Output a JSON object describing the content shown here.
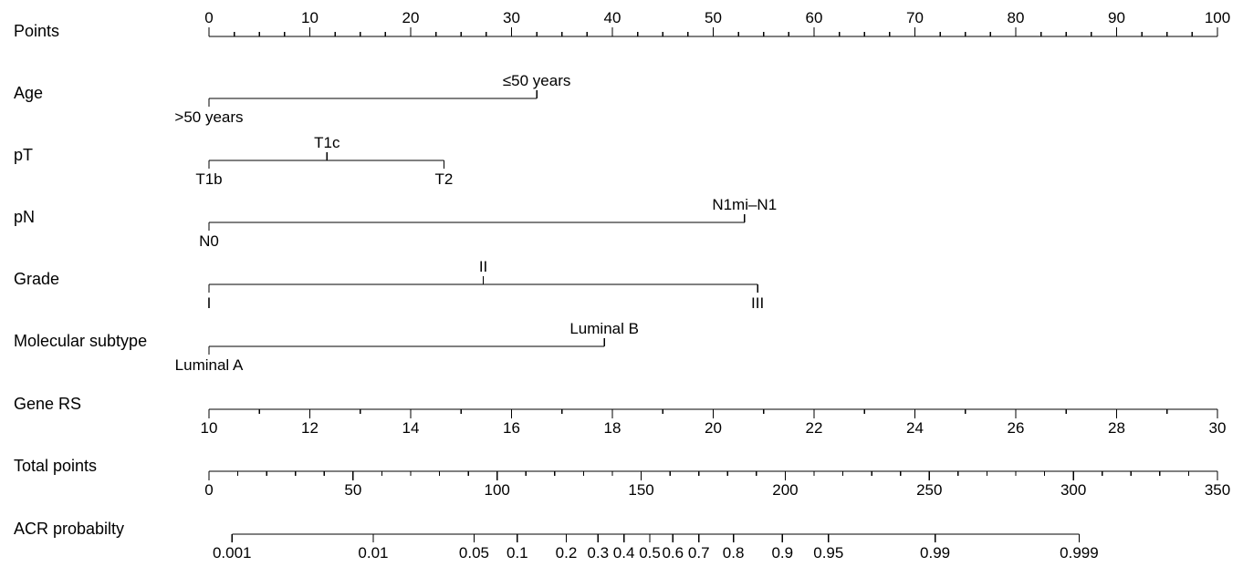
{
  "chart_data": {
    "type": "nomogram",
    "points_scale": {
      "label": "Points",
      "min": 0,
      "max": 100,
      "major_ticks": [
        0,
        10,
        20,
        30,
        40,
        50,
        60,
        70,
        80,
        90,
        100
      ],
      "tick_labels": [
        "0",
        "10",
        "20",
        "30",
        "40",
        "50",
        "60",
        "70",
        "80",
        "90",
        "100"
      ],
      "minor_step": 2.5
    },
    "predictors": [
      {
        "label": "Age",
        "levels": [
          {
            "label": ">50 years",
            "points": 0,
            "side": "below"
          },
          {
            "label": "≤50 years",
            "points": 32.5,
            "side": "above"
          }
        ]
      },
      {
        "label": "pT",
        "levels": [
          {
            "label": "T1b",
            "points": 0,
            "side": "below"
          },
          {
            "label": "T1c",
            "points": 11.7,
            "side": "above"
          },
          {
            "label": "T2",
            "points": 23.3,
            "side": "below"
          }
        ]
      },
      {
        "label": "pN",
        "levels": [
          {
            "label": "N0",
            "points": 0,
            "side": "below"
          },
          {
            "label": "N1mi–N1",
            "points": 53.1,
            "side": "above"
          }
        ]
      },
      {
        "label": "Grade",
        "levels": [
          {
            "label": "I",
            "points": 0,
            "side": "below"
          },
          {
            "label": "II",
            "points": 27.2,
            "side": "above"
          },
          {
            "label": "III",
            "points": 54.4,
            "side": "below"
          }
        ]
      },
      {
        "label": "Molecular subtype",
        "levels": [
          {
            "label": "Luminal A",
            "points": 0,
            "side": "below"
          },
          {
            "label": "Luminal B",
            "points": 39.2,
            "side": "above"
          }
        ]
      },
      {
        "label": "Gene RS",
        "continuous": true,
        "min": 10,
        "max": 30,
        "points_at_min": 0,
        "points_at_max": 100,
        "major_ticks": [
          10,
          12,
          14,
          16,
          18,
          20,
          22,
          24,
          26,
          28,
          30
        ],
        "tick_labels": [
          "10",
          "12",
          "14",
          "16",
          "18",
          "20",
          "22",
          "24",
          "26",
          "28",
          "30"
        ],
        "minor_step": 1
      }
    ],
    "total_points_scale": {
      "label": "Total points",
      "min": 0,
      "max": 350,
      "major_ticks": [
        0,
        50,
        100,
        150,
        200,
        250,
        300,
        350
      ],
      "tick_labels": [
        "0",
        "50",
        "100",
        "150",
        "200",
        "250",
        "300",
        "350"
      ],
      "minor_step": 10
    },
    "probability_scale": {
      "label": "ACR probabilty",
      "ticks": [
        {
          "label": "0.001",
          "total_points": 8
        },
        {
          "label": "0.01",
          "total_points": 57
        },
        {
          "label": "0.05",
          "total_points": 92
        },
        {
          "label": "0.1",
          "total_points": 107
        },
        {
          "label": "0.2",
          "total_points": 124
        },
        {
          "label": "0.3",
          "total_points": 135
        },
        {
          "label": "0.4",
          "total_points": 144
        },
        {
          "label": "0.5",
          "total_points": 153
        },
        {
          "label": "0.6",
          "total_points": 161
        },
        {
          "label": "0.7",
          "total_points": 170
        },
        {
          "label": "0.8",
          "total_points": 182
        },
        {
          "label": "0.9",
          "total_points": 199
        },
        {
          "label": "0.95",
          "total_points": 215
        },
        {
          "label": "0.99",
          "total_points": 252
        },
        {
          "label": "0.999",
          "total_points": 302
        }
      ]
    }
  }
}
